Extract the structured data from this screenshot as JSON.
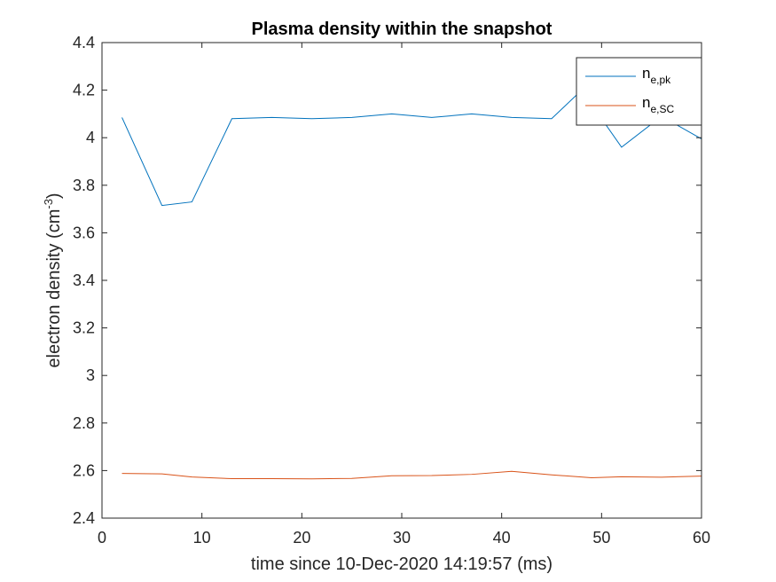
{
  "chart_data": {
    "type": "line",
    "title": "Plasma density within the snapshot",
    "xlabel": "time since 10-Dec-2020 14:19:57 (ms)",
    "ylabel": {
      "text": "electron density (cm",
      "superscript": "-3",
      "suffix": ")"
    },
    "xlim": [
      0,
      60
    ],
    "ylim": [
      2.4,
      4.4
    ],
    "x_ticks": [
      0,
      10,
      20,
      30,
      40,
      50,
      60
    ],
    "x_tick_labels": [
      "0",
      "10",
      "20",
      "30",
      "40",
      "50",
      "60"
    ],
    "y_ticks": [
      2.4,
      2.6,
      2.8,
      3.0,
      3.2,
      3.4,
      3.6,
      3.8,
      4.0,
      4.2,
      4.4
    ],
    "y_tick_labels": [
      "2.4",
      "2.6",
      "2.8",
      "3",
      "3.2",
      "3.4",
      "3.6",
      "3.8",
      "4",
      "4.2",
      "4.4"
    ],
    "grid": false,
    "legend_position": "top-right",
    "series": [
      {
        "name": "n",
        "name_subscript": "e,pk",
        "color": "#0072BD",
        "x": [
          2,
          6,
          9,
          13,
          17,
          21,
          25,
          29,
          33,
          37,
          41,
          45,
          48,
          52,
          56,
          60
        ],
        "y": [
          4.085,
          3.715,
          3.73,
          4.08,
          4.085,
          4.08,
          4.085,
          4.1,
          4.085,
          4.1,
          4.085,
          4.08,
          4.2,
          3.96,
          4.09,
          3.995
        ]
      },
      {
        "name": "n",
        "name_subscript": "e,SC",
        "color": "#D95319",
        "x": [
          2,
          6,
          9,
          13,
          17,
          21,
          25,
          29,
          33,
          37,
          41,
          45,
          49,
          52,
          56,
          60
        ],
        "y": [
          2.588,
          2.586,
          2.573,
          2.566,
          2.566,
          2.565,
          2.567,
          2.578,
          2.579,
          2.584,
          2.597,
          2.582,
          2.57,
          2.574,
          2.572,
          2.577
        ]
      }
    ]
  }
}
